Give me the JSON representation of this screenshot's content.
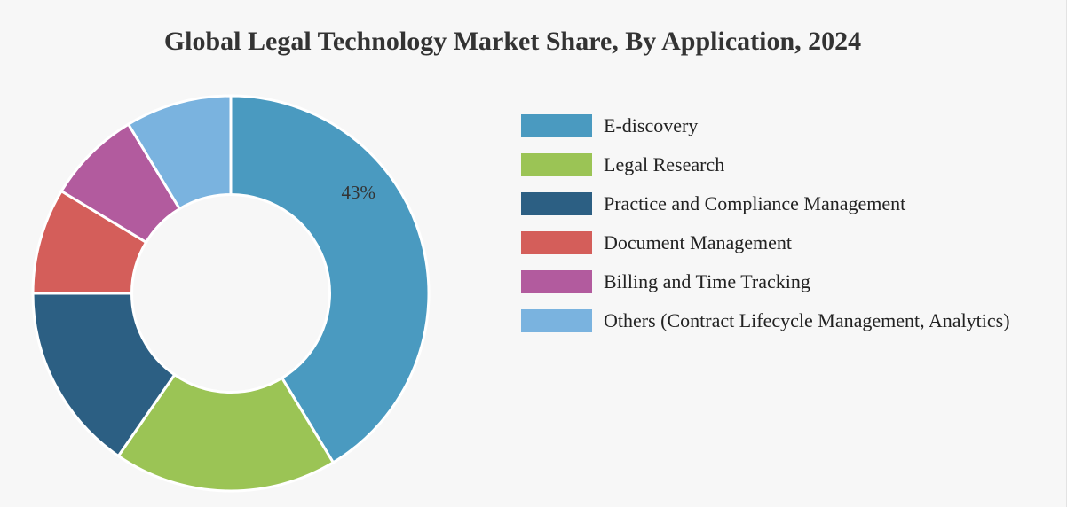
{
  "chart_data": {
    "type": "pie",
    "title": "Global Legal Technology Market Share, By Application, 2024",
    "inner_radius_ratio": 0.5,
    "legend_position": "right",
    "slices": [
      {
        "name": "E-discovery",
        "value": 43,
        "color": "#4a9ac0",
        "label": "43%"
      },
      {
        "name": "Legal Research",
        "value": 19,
        "color": "#9bc455",
        "label": ""
      },
      {
        "name": "Practice and Compliance Management",
        "value": 16,
        "color": "#2c5f83",
        "label": ""
      },
      {
        "name": "Document Management",
        "value": 9,
        "color": "#d45e5a",
        "label": ""
      },
      {
        "name": "Billing and Time Tracking",
        "value": 8,
        "color": "#b25b9e",
        "label": ""
      },
      {
        "name": "Others (Contract Lifecycle Management, Analytics)",
        "value": 9,
        "color": "#7ab3df",
        "label": ""
      }
    ]
  }
}
